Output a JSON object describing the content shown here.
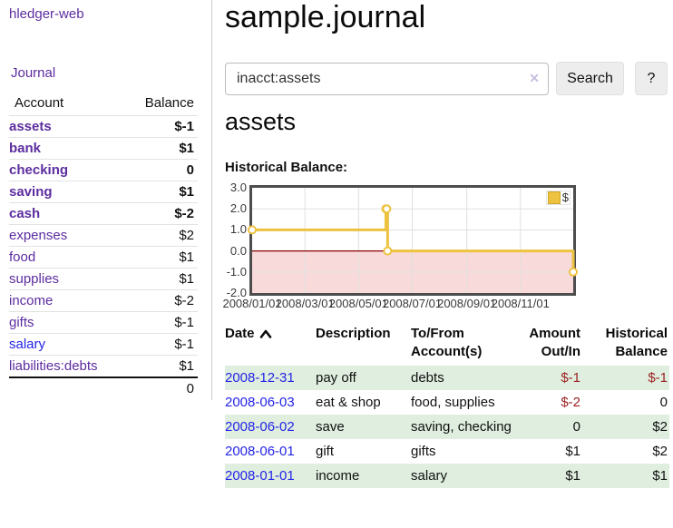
{
  "brand": "hledger-web",
  "sidebar": {
    "journal_link": "Journal",
    "accounts_table": {
      "account_header": "Account",
      "balance_header": "Balance",
      "rows": [
        {
          "name": "assets",
          "balance": "$-1",
          "indent": 0,
          "bold": true,
          "balance_negative": true,
          "muted": false,
          "link_color": "purple"
        },
        {
          "name": "bank",
          "balance": "$1",
          "indent": 1,
          "bold": true,
          "balance_negative": false,
          "muted": false,
          "link_color": "purple"
        },
        {
          "name": "checking",
          "balance": "0",
          "indent": 2,
          "bold": true,
          "balance_negative": false,
          "muted": false,
          "link_color": "purple"
        },
        {
          "name": "saving",
          "balance": "$1",
          "indent": 2,
          "bold": true,
          "balance_negative": false,
          "muted": false,
          "link_color": "purple"
        },
        {
          "name": "cash",
          "balance": "$-2",
          "indent": 1,
          "bold": true,
          "balance_negative": true,
          "muted": false,
          "link_color": "purple"
        },
        {
          "name": "expenses",
          "balance": "$2",
          "indent": 0,
          "bold": false,
          "balance_negative": false,
          "muted": false,
          "link_color": "purple"
        },
        {
          "name": "food",
          "balance": "$1",
          "indent": 1,
          "bold": false,
          "balance_negative": false,
          "muted": false,
          "link_color": "purple"
        },
        {
          "name": "supplies",
          "balance": "$1",
          "indent": 1,
          "bold": false,
          "balance_negative": false,
          "muted": false,
          "link_color": "purple"
        },
        {
          "name": "income",
          "balance": "$-2",
          "indent": 0,
          "bold": false,
          "balance_negative": true,
          "muted": true,
          "link_color": "purple"
        },
        {
          "name": "gifts",
          "balance": "$-1",
          "indent": 1,
          "bold": false,
          "balance_negative": true,
          "muted": true,
          "link_color": "purple"
        },
        {
          "name": "salary",
          "balance": "$-1",
          "indent": 1,
          "bold": false,
          "balance_negative": true,
          "muted": true,
          "link_color": "blue"
        },
        {
          "name": "liabilities:debts",
          "balance": "$1",
          "indent": 0,
          "bold": false,
          "balance_negative": false,
          "muted": false,
          "link_color": "purple"
        }
      ],
      "total": "0"
    }
  },
  "main": {
    "title": "sample.journal",
    "search": {
      "value": "inacct:assets",
      "clear_icon": "✕",
      "search_button": "Search",
      "help_button": "?"
    },
    "account_heading": "assets",
    "chart_label": "Historical Balance:"
  },
  "chart_data": {
    "type": "line",
    "step": true,
    "title": "Historical Balance:",
    "series": [
      {
        "name": "$",
        "color": "#edc240",
        "points": [
          [
            "2008-01-01",
            1
          ],
          [
            "2008-06-01",
            2
          ],
          [
            "2008-06-02",
            2
          ],
          [
            "2008-06-03",
            0
          ],
          [
            "2008-12-31",
            -1
          ]
        ]
      }
    ],
    "x_ticks": [
      "2008/01/01",
      "2008/03/01",
      "2008/05/01",
      "2008/07/01",
      "2008/09/01",
      "2008/11/01"
    ],
    "y_ticks": [
      "3.0",
      "2.0",
      "1.0",
      "0.0",
      "-1.0",
      "-2.0"
    ],
    "xlim": [
      "2008-01-01",
      "2008-12-31"
    ],
    "ylim": [
      -2,
      3
    ],
    "grid": true,
    "legend_position": "top-right",
    "legend": [
      {
        "label": "$",
        "color": "#edc240"
      }
    ],
    "negative_region_fill": "#f9dada",
    "zero_line_color": "#8b0000",
    "gridline_color": "#e0e0e0"
  },
  "transactions": {
    "headers": {
      "date": "Date",
      "description": "Description",
      "accounts": "To/From Account(s)",
      "amount": "Amount Out/In",
      "balance": "Historical Balance"
    },
    "sort": {
      "column": "Date",
      "direction": "ascending"
    },
    "rows": [
      {
        "date": "2008-12-31",
        "description": "pay off",
        "accounts": "debts",
        "amount": "$-1",
        "balance": "$-1",
        "amount_negative": true,
        "balance_negative": true,
        "highlight": true
      },
      {
        "date": "2008-06-03",
        "description": "eat & shop",
        "accounts": "food, supplies",
        "amount": "$-2",
        "balance": "0",
        "amount_negative": true,
        "balance_negative": false,
        "highlight": false
      },
      {
        "date": "2008-06-02",
        "description": "save",
        "accounts": "saving, checking",
        "amount": "0",
        "balance": "$2",
        "amount_negative": false,
        "balance_negative": false,
        "highlight": true
      },
      {
        "date": "2008-06-01",
        "description": "gift",
        "accounts": "gifts",
        "amount": "$1",
        "balance": "$2",
        "amount_negative": false,
        "balance_negative": false,
        "highlight": false
      },
      {
        "date": "2008-01-01",
        "description": "income",
        "accounts": "salary",
        "amount": "$1",
        "balance": "$1",
        "amount_negative": false,
        "balance_negative": false,
        "highlight": true
      }
    ]
  },
  "colors": {
    "link_purple": "#5c2d9f",
    "link_blue": "#2424e8",
    "negative_strong": "#9b1c1c",
    "negative_muted": "#c47979",
    "table_negative": "#9b2222",
    "row_highlight_green": "#dfeede",
    "chart_line_gold": "#edc240",
    "chart_negative_region_pink": "#f9dada",
    "zero_line_dark_red": "#8b0000"
  }
}
